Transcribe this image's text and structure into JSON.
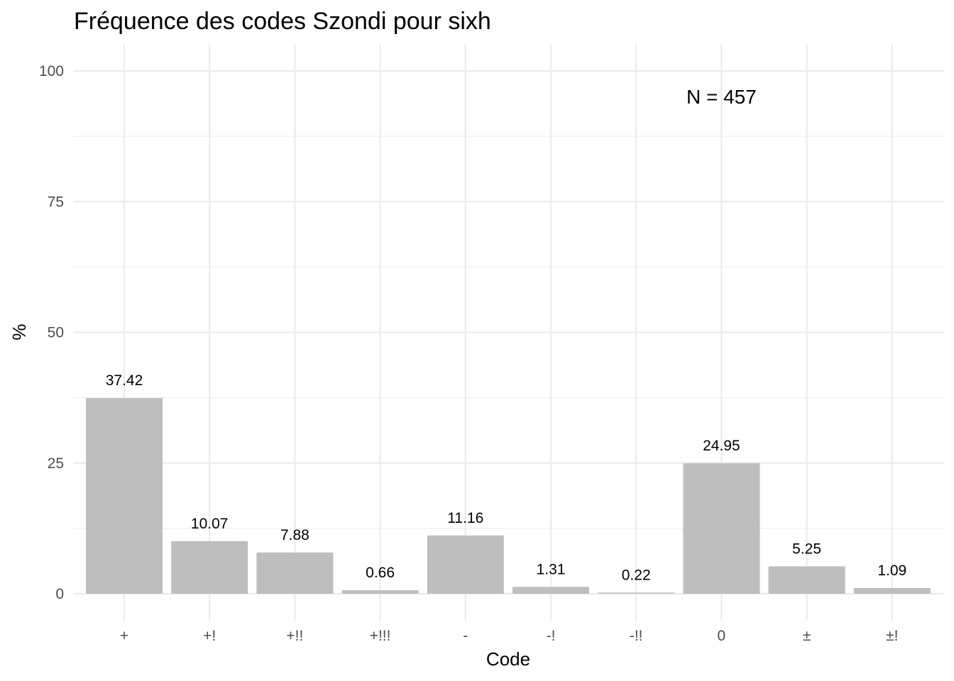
{
  "chart_data": {
    "type": "bar",
    "title": "Fréquence des codes Szondi pour sixh",
    "xlabel": "Code",
    "ylabel": "%",
    "categories": [
      "+",
      "+!",
      "+!!",
      "+!!!",
      "-",
      "-!",
      "-!!",
      "0",
      "±",
      "±!"
    ],
    "values": [
      37.42,
      10.07,
      7.88,
      0.66,
      11.16,
      1.31,
      0.22,
      24.95,
      5.25,
      1.09
    ],
    "value_labels": [
      "37.42",
      "10.07",
      "7.88",
      "0.66",
      "11.16",
      "1.31",
      "0.22",
      "24.95",
      "5.25",
      "1.09"
    ],
    "ylim": [
      0,
      100
    ],
    "yticks": [
      0,
      25,
      50,
      75,
      100
    ],
    "ytick_labels": [
      "0",
      "25",
      "50",
      "75",
      "100"
    ],
    "grid": true,
    "legend": "none",
    "bar_color": "#bebebe",
    "annotation": {
      "text": "N = 457",
      "x": "0",
      "y": 95
    }
  }
}
